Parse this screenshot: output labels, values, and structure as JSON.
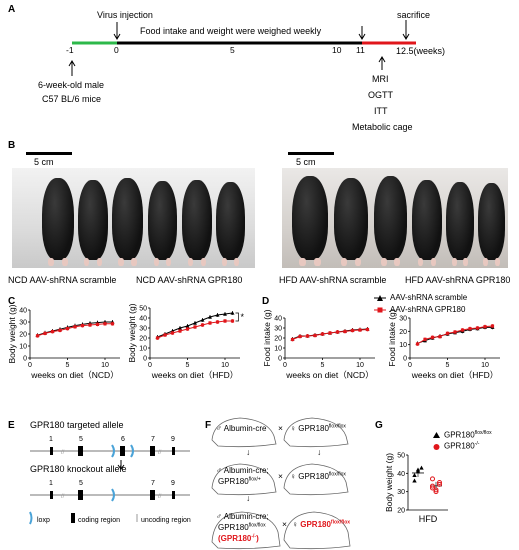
{
  "panels": {
    "a": "A",
    "b": "B",
    "c": "C",
    "d": "D",
    "e": "E",
    "f": "F",
    "g": "G"
  },
  "timeline": {
    "virus": "Virus injection",
    "weekly": "Food intake and weight were weighed weekly",
    "sacrifice": "sacrifice",
    "ticks": [
      "-1",
      "0",
      "5",
      "10",
      "11",
      "12.5(weeks)"
    ],
    "mice": [
      "6-week-old male",
      "C57 BL/6 mice"
    ],
    "tests": [
      "MRI",
      "OGTT",
      "ITT",
      "Metabolic cage"
    ]
  },
  "photos": {
    "scale_left": "5 cm",
    "scale_right": "5 cm",
    "captions": [
      "NCD AAV-shRNA scramble",
      "NCD AAV-shRNA GPR180",
      "HFD AAV-shRNA scramble",
      "HFD AAV-shRNA GPR180"
    ]
  },
  "legend": {
    "scramble": "AAV-shRNA scramble",
    "gpr180": "AAV-shRNA GPR180"
  },
  "chart_data": [
    {
      "type": "line",
      "panel": "C",
      "ylabel": "Body weight (g)",
      "xlabel": "weeks on diet（NCD）",
      "ylim": [
        0,
        40
      ],
      "yticks": [
        0,
        10,
        20,
        30,
        40
      ],
      "xlim": [
        0,
        12
      ],
      "xticks": [
        0,
        5,
        10
      ],
      "x": [
        1,
        2,
        3,
        4,
        5,
        6,
        7,
        8,
        9,
        10,
        11
      ],
      "series": [
        {
          "name": "AAV-shRNA scramble",
          "values": [
            19,
            21,
            22.5,
            24,
            25.5,
            27,
            28,
            29,
            29.5,
            30,
            30
          ]
        },
        {
          "name": "AAV-shRNA GPR180",
          "values": [
            18.5,
            20.5,
            22,
            23,
            24.5,
            26,
            27,
            27.5,
            28,
            28.5,
            28.5
          ]
        }
      ]
    },
    {
      "type": "line",
      "panel": "C",
      "ylabel": "Body weight (g)",
      "xlabel": "weeks on diet（HFD）",
      "ylim": [
        0,
        50
      ],
      "yticks": [
        0,
        10,
        20,
        30,
        40,
        50
      ],
      "xlim": [
        0,
        12
      ],
      "xticks": [
        0,
        5,
        10
      ],
      "x": [
        1,
        2,
        3,
        4,
        5,
        6,
        7,
        8,
        9,
        10,
        11
      ],
      "annotation": "*",
      "series": [
        {
          "name": "AAV-shRNA scramble",
          "values": [
            21,
            24,
            27,
            30,
            32,
            35,
            38,
            41,
            43,
            44,
            45
          ]
        },
        {
          "name": "AAV-shRNA GPR180",
          "values": [
            20,
            23,
            25,
            27,
            29,
            31,
            33,
            35,
            36,
            37,
            37
          ]
        }
      ]
    },
    {
      "type": "line",
      "panel": "D",
      "ylabel": "Food intake (g)",
      "xlabel": "weeks on diet（NCD）",
      "ylim": [
        0,
        40
      ],
      "yticks": [
        0,
        10,
        20,
        30,
        40
      ],
      "xlim": [
        0,
        12
      ],
      "xticks": [
        0,
        5,
        10
      ],
      "x": [
        1,
        2,
        3,
        4,
        5,
        6,
        7,
        8,
        9,
        10,
        11
      ],
      "series": [
        {
          "name": "AAV-shRNA scramble",
          "values": [
            19,
            22,
            22,
            23,
            24,
            25,
            26,
            27,
            28,
            28.5,
            29
          ]
        },
        {
          "name": "AAV-shRNA GPR180",
          "values": [
            18.5,
            21.5,
            22,
            22.5,
            24,
            25,
            26,
            26.5,
            27.5,
            28,
            28.5
          ]
        }
      ]
    },
    {
      "type": "line",
      "panel": "D",
      "ylabel": "Food intake (g)",
      "xlabel": "weeks on diet（HFD）",
      "ylim": [
        0,
        30
      ],
      "yticks": [
        0,
        10,
        20,
        30
      ],
      "xlim": [
        0,
        12
      ],
      "xticks": [
        0,
        5,
        10
      ],
      "x": [
        1,
        2,
        3,
        4,
        5,
        6,
        7,
        8,
        9,
        10,
        11
      ],
      "series": [
        {
          "name": "AAV-shRNA scramble",
          "values": [
            11,
            13,
            15,
            16.5,
            18,
            19,
            20,
            21.5,
            22,
            23,
            23
          ]
        },
        {
          "name": "AAV-shRNA GPR180",
          "values": [
            10.5,
            14,
            15.5,
            16,
            18.5,
            19.5,
            21,
            22,
            22.5,
            23.5,
            24
          ]
        }
      ]
    },
    {
      "type": "scatter",
      "panel": "G",
      "ylabel": "Body weight (g)",
      "xlabel": "HFD",
      "ylim": [
        20,
        50
      ],
      "yticks": [
        20,
        30,
        40,
        50
      ],
      "series": [
        {
          "name": "GPR180 flox/flox",
          "values": [
            39,
            41,
            43,
            36,
            42
          ]
        },
        {
          "name": "GPR180 -/-",
          "values": [
            33,
            31,
            35,
            37,
            30,
            34,
            32
          ]
        }
      ]
    }
  ],
  "allele": {
    "targeted": "GPR180 targeted allele",
    "knockout": "GPR180 knockout allele",
    "exons_top": [
      "1",
      "5",
      "6",
      "7",
      "9"
    ],
    "exons_bot": [
      "1",
      "5",
      "7",
      "9"
    ],
    "leg_loxp": "loxp",
    "leg_coding": "coding region",
    "leg_uncoding": "uncoding region"
  },
  "cross": {
    "a_cre": "Albumin-cre",
    "x": "×",
    "flox": "GPR180",
    "flox_sup": "flox/flox",
    "f1_line1": "Albumin-cre;",
    "f1_line2": "GPR180",
    "f1_sup": "flox/+",
    "f2_line1": "Albumin-cre;",
    "f2_line2": "GPR180",
    "f2_sup": "flox/flox",
    "ko": "GPR180",
    "ko_sup": "-/-",
    "male": "♂",
    "female": "♀",
    "red": "#e0161b"
  },
  "g_legend": {
    "a": "GPR180",
    "a_sup": "flox/flox",
    "b": "GPR180",
    "b_sup": "-/-"
  },
  "colors": {
    "scramble": "#000000",
    "gpr180": "#e0161b",
    "green": "#2db84a",
    "red": "#e0161b",
    "blue": "#4aa3d8"
  }
}
